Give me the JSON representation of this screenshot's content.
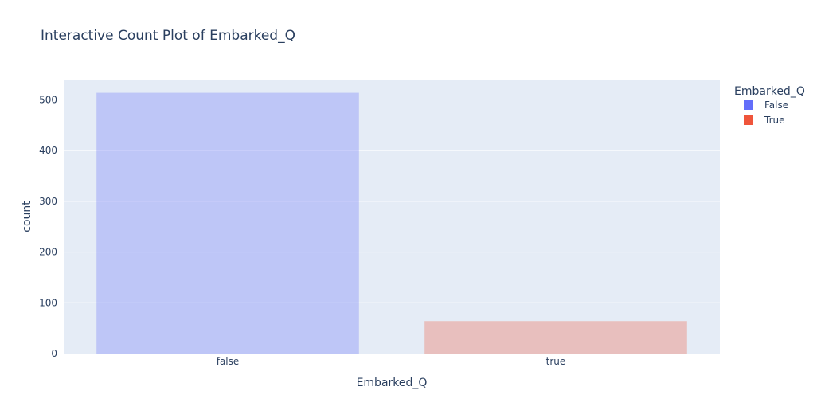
{
  "chart_data": {
    "type": "bar",
    "title": "Interactive Count Plot of Embarked_Q",
    "xlabel": "Embarked_Q",
    "ylabel": "count",
    "categories": [
      "false",
      "true"
    ],
    "series": [
      {
        "name": "False",
        "color": "#636efa",
        "values": [
          514,
          null
        ]
      },
      {
        "name": "True",
        "color": "#ef553b",
        "values": [
          null,
          64
        ]
      }
    ],
    "ylim": [
      0,
      540
    ],
    "yticks": [
      0,
      100,
      200,
      300,
      400,
      500
    ],
    "grid": true,
    "legend": {
      "title": "Embarked_Q",
      "position": "top-right"
    },
    "plot_bgcolor": "#e5ecf6"
  }
}
